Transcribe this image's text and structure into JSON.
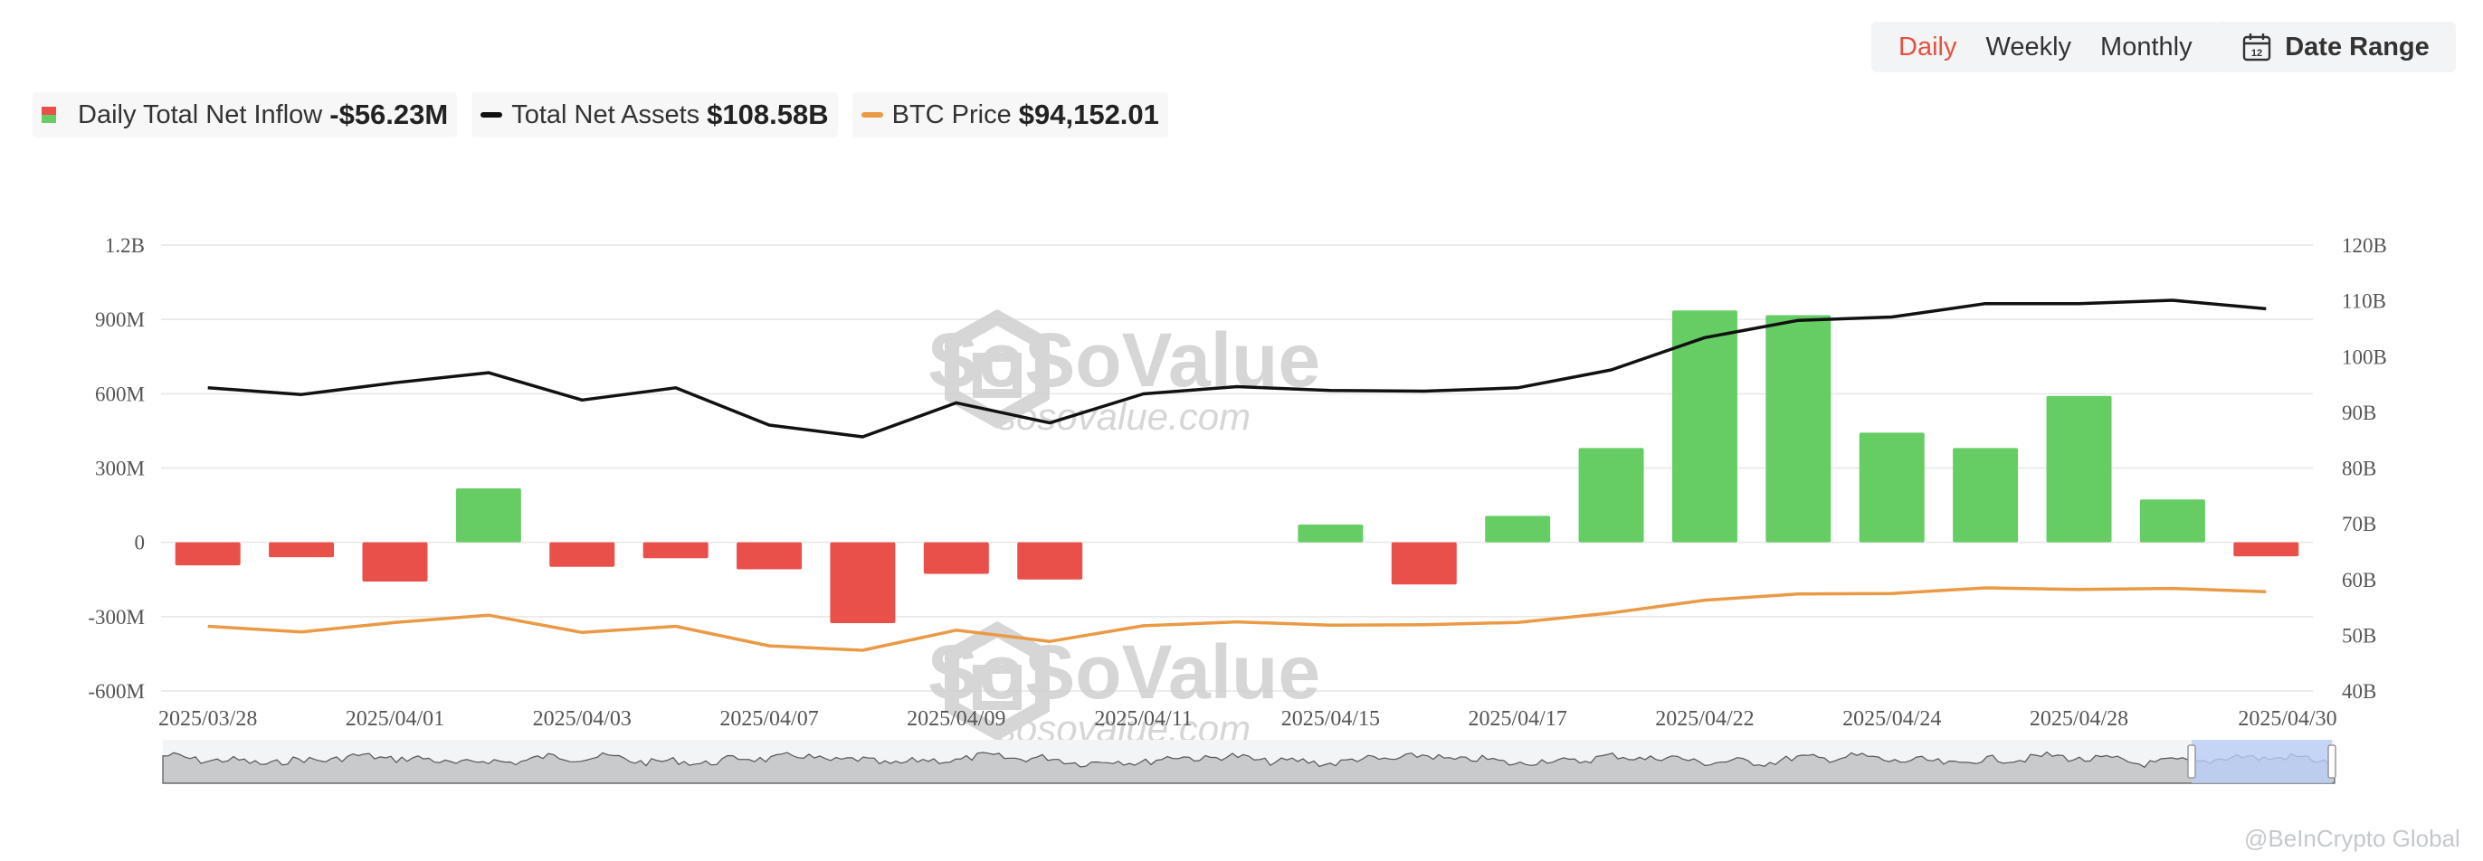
{
  "controls": {
    "periods": [
      {
        "label": "Daily",
        "active": true
      },
      {
        "label": "Weekly",
        "active": false
      },
      {
        "label": "Monthly",
        "active": false
      }
    ],
    "date_range_label": "Date Range",
    "date_range_icon": "calendar-icon",
    "calendar_day": "12"
  },
  "legend": {
    "inflow_label": "Daily Total Net Inflow",
    "inflow_value": "-$56.23M",
    "assets_label": "Total Net Assets",
    "assets_value": "$108.58B",
    "btc_label": "BTC Price",
    "btc_value": "$94,152.01"
  },
  "colors": {
    "positive": "#66cd65",
    "negative": "#e9504a",
    "assets_line": "#111111",
    "btc_line": "#ea9a45",
    "grid": "#e6e6e6",
    "navigator_fill": "#c9cacc",
    "navigator_selected": "#b9cdf6",
    "watermark": "#cfcfcf"
  },
  "watermark": {
    "brand": "SoSoValue",
    "url": "sosovalue.com"
  },
  "attribution": "@BeInCrypto Global",
  "chart_data": {
    "type": "bar",
    "x_tick_labels": [
      "2025/03/28",
      "2025/04/01",
      "2025/04/03",
      "2025/04/07",
      "2025/04/09",
      "2025/04/11",
      "2025/04/15",
      "2025/04/17",
      "2025/04/22",
      "2025/04/24",
      "2025/04/28",
      "2025/04/30"
    ],
    "x": [
      "2025/03/28",
      "2025/03/31",
      "2025/04/01",
      "2025/04/02",
      "2025/04/03",
      "2025/04/04",
      "2025/04/07",
      "2025/04/08",
      "2025/04/09",
      "2025/04/10",
      "2025/04/11",
      "2025/04/14",
      "2025/04/15",
      "2025/04/16",
      "2025/04/17",
      "2025/04/21",
      "2025/04/22",
      "2025/04/23",
      "2025/04/24",
      "2025/04/25",
      "2025/04/28",
      "2025/04/29",
      "2025/04/30"
    ],
    "series": [
      {
        "name": "Daily Total Net Inflow",
        "axis": "left",
        "type": "bar",
        "values": [
          -93000000.0,
          -60000000.0,
          -158000000.0,
          218000000.0,
          -99000000.0,
          -64000000.0,
          -109000000.0,
          -326000000.0,
          -127000000.0,
          -150000000.0,
          0,
          0,
          72000000.0,
          -170000000.0,
          107000000.0,
          381000000.0,
          936000000.0,
          917000000.0,
          443000000.0,
          381000000.0,
          591000000.0,
          173000000.0,
          -56230000.0
        ]
      },
      {
        "name": "Total Net Assets",
        "axis": "right",
        "type": "line",
        "values": [
          94400000000.0,
          93200000000.0,
          95300000000.0,
          97100000000.0,
          92200000000.0,
          94400000000.0,
          87700000000.0,
          85600000000.0,
          91700000000.0,
          88100000000.0,
          93300000000.0,
          94600000000.0,
          93900000000.0,
          93800000000.0,
          94400000000.0,
          97600000000.0,
          103400000000.0,
          106500000000.0,
          107100000000.0,
          109500000000.0,
          109500000000.0,
          110100000000.0,
          108580000000.0
        ]
      },
      {
        "name": "BTC Price",
        "axis": "right",
        "type": "line",
        "values": [
          51600000000.0,
          50600000000.0,
          52300000000.0,
          53600000000.0,
          50500000000.0,
          51600000000.0,
          48100000000.0,
          47300000000.0,
          50900000000.0,
          48900000000.0,
          51700000000.0,
          52400000000.0,
          51800000000.0,
          51900000000.0,
          52300000000.0,
          54000000000.0,
          56300000000.0,
          57400000000.0,
          57500000000.0,
          58500000000.0,
          58200000000.0,
          58400000000.0,
          57800000000.0
        ]
      }
    ],
    "y_left": {
      "ticks": [
        -600000000.0,
        -300000000.0,
        0,
        300000000.0,
        600000000.0,
        900000000.0,
        1200000000.0
      ],
      "tick_labels": [
        "-600M",
        "-300M",
        "0",
        "300M",
        "600M",
        "900M",
        "1.2B"
      ],
      "range": [
        -600000000.0,
        1200000000.0
      ]
    },
    "y_right": {
      "ticks": [
        40000000000.0,
        50000000000.0,
        60000000000.0,
        70000000000.0,
        80000000000.0,
        90000000000.0,
        100000000000.0,
        110000000000.0,
        120000000000.0
      ],
      "tick_labels": [
        "40B",
        "50B",
        "60B",
        "70B",
        "80B",
        "90B",
        "100B",
        "110B",
        "120B"
      ],
      "range": [
        40000000000.0,
        120000000000.0
      ]
    },
    "grid": true,
    "legend_position": "top-left"
  }
}
